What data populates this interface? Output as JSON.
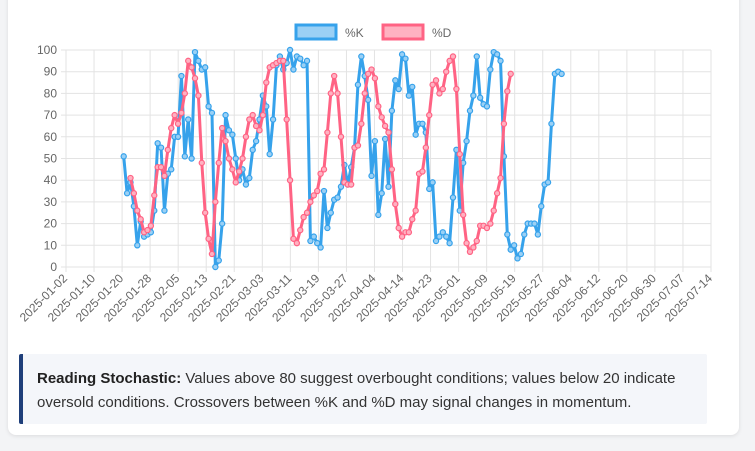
{
  "chart_data": {
    "type": "line",
    "y_axis": {
      "min": 0,
      "max": 100,
      "step": 10
    },
    "tick_labels": [
      "2025-01-02",
      "2025-01-10",
      "2025-01-20",
      "2025-01-28",
      "2025-02-05",
      "2025-02-13",
      "2025-02-21",
      "2025-03-03",
      "2025-03-11",
      "2025-03-19",
      "2025-03-27",
      "2025-04-04",
      "2025-04-14",
      "2025-04-23",
      "2025-05-01",
      "2025-05-09",
      "2025-05-19",
      "2025-05-27",
      "2025-06-04",
      "2025-06-12",
      "2025-06-20",
      "2025-06-30",
      "2025-07-07",
      "2025-07-14"
    ],
    "point_count": 191,
    "series": [
      {
        "name": "%K",
        "color": "#36a2eb",
        "start_index": 17,
        "values": [
          51,
          34,
          39,
          28,
          10,
          21,
          14,
          15,
          16,
          26,
          57,
          55,
          26,
          43,
          45,
          60,
          60,
          88,
          51,
          68,
          50,
          99,
          95,
          91,
          92,
          74,
          71,
          0,
          3,
          20,
          70,
          63,
          61,
          50,
          40,
          45,
          38,
          41,
          54,
          58,
          68,
          79,
          74,
          52,
          68,
          93,
          97,
          91,
          94,
          100,
          91,
          97,
          96,
          93,
          95,
          12,
          14,
          11,
          9,
          35,
          18,
          25,
          31,
          32,
          37,
          47,
          38,
          46,
          55,
          84,
          97,
          88,
          77,
          42,
          58,
          24,
          34,
          59,
          37,
          72,
          86,
          82,
          98,
          96,
          79,
          83,
          61,
          66,
          66,
          62,
          36,
          39,
          12,
          14,
          16,
          14,
          11,
          32,
          54,
          26,
          48,
          58,
          72,
          79,
          97,
          78,
          75,
          74,
          91,
          99,
          98,
          95,
          51,
          15,
          8,
          10,
          4,
          6,
          15,
          20,
          20,
          20,
          15,
          28,
          38,
          39,
          66,
          89,
          90,
          89
        ]
      },
      {
        "name": "%D",
        "color": "#ff6384",
        "start_index": 19,
        "values": [
          41,
          34,
          26,
          22,
          16,
          17,
          19,
          33,
          46,
          46,
          42,
          54,
          64,
          70,
          66,
          71,
          80,
          95,
          92,
          87,
          79,
          48,
          25,
          13,
          6,
          30,
          48,
          64,
          58,
          50,
          45,
          39,
          44,
          50,
          60,
          68,
          70,
          65,
          63,
          70,
          85,
          92,
          93,
          94,
          95,
          95,
          68,
          40,
          13,
          11,
          17,
          23,
          25,
          30,
          33,
          35,
          43,
          45,
          62,
          80,
          88,
          80,
          60,
          39,
          38,
          38,
          55,
          56,
          66,
          80,
          89,
          91,
          87,
          74,
          69,
          65,
          62,
          45,
          29,
          18,
          14,
          16,
          16,
          22,
          26,
          43,
          44,
          55,
          70,
          84,
          86,
          80,
          82,
          90,
          95,
          97,
          82,
          52,
          24,
          11,
          7,
          9,
          12,
          19,
          19,
          18,
          20,
          26,
          34,
          41,
          66,
          81,
          89
        ]
      }
    ],
    "legend": {
      "position": "top"
    }
  },
  "note": {
    "label": "Reading Stochastic:",
    "text": " Values above 80 suggest overbought conditions; values below 20 indicate oversold conditions. Crossovers between %K and %D may signal changes in momentum."
  }
}
